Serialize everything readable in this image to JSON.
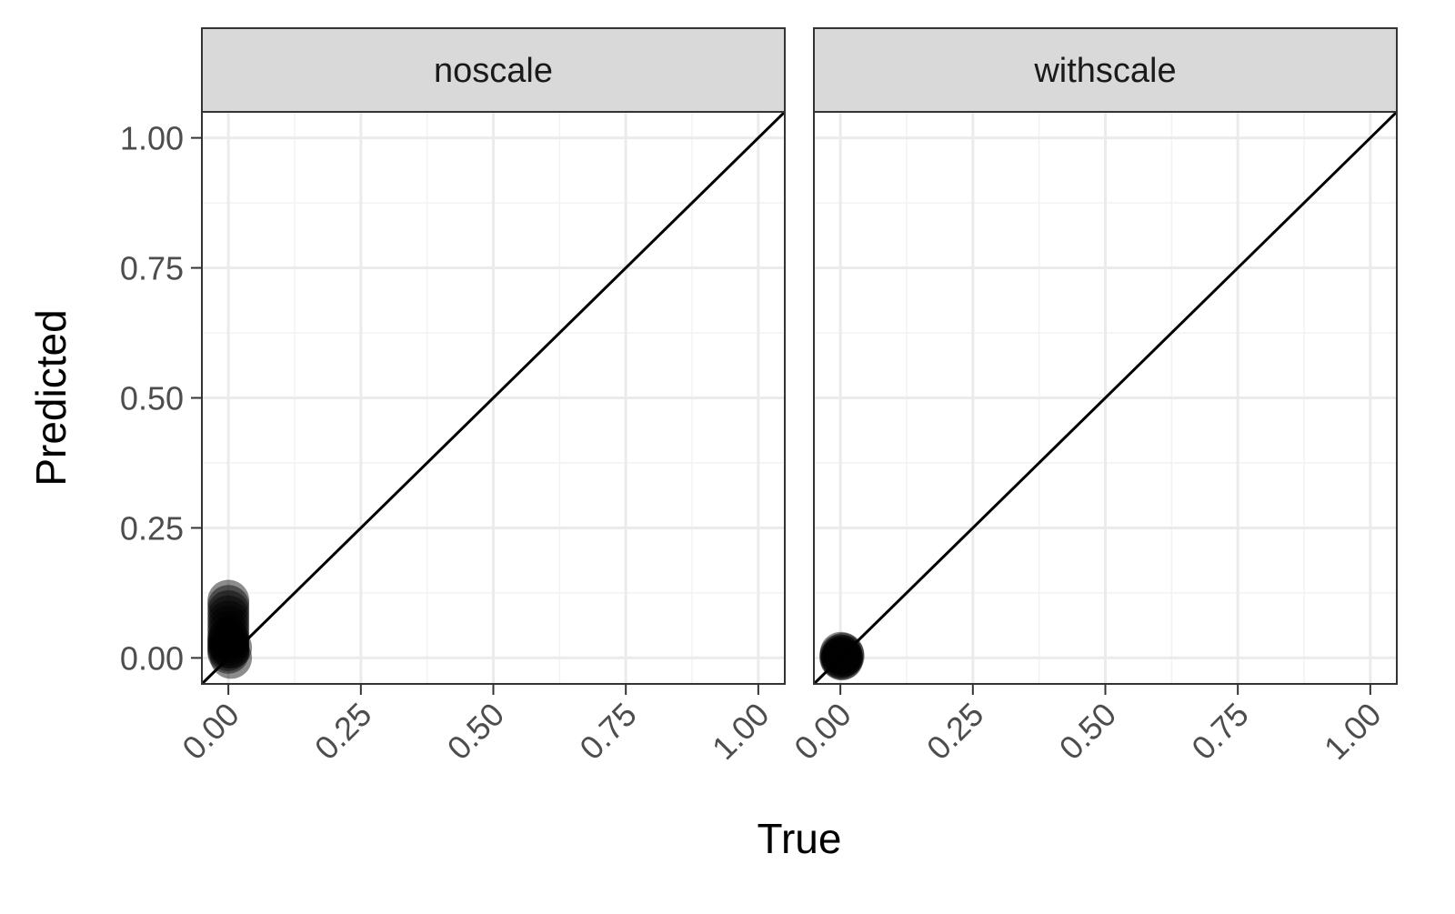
{
  "chart_data": {
    "type": "scatter",
    "xlabel": "True",
    "ylabel": "Predicted",
    "xlim": [
      -0.05,
      1.05
    ],
    "ylim": [
      -0.05,
      1.05
    ],
    "x_ticks": [
      "0.00",
      "0.25",
      "0.50",
      "0.75",
      "1.00"
    ],
    "y_ticks": [
      "0.00",
      "0.25",
      "0.50",
      "0.75",
      "1.00"
    ],
    "grid": true,
    "reference_line": "y = x",
    "point_color": "#000000",
    "panels": [
      {
        "label": "noscale",
        "points": [
          {
            "x": 0.0,
            "y": 0.11
          },
          {
            "x": 0.0,
            "y": 0.1
          },
          {
            "x": 0.0,
            "y": 0.09
          },
          {
            "x": 0.0,
            "y": 0.08
          },
          {
            "x": 0.0,
            "y": 0.07
          },
          {
            "x": 0.0,
            "y": 0.06
          },
          {
            "x": 0.0,
            "y": 0.05
          },
          {
            "x": 0.0,
            "y": 0.04
          },
          {
            "x": 0.0,
            "y": 0.035
          },
          {
            "x": 0.0,
            "y": 0.03
          },
          {
            "x": 0.0,
            "y": 0.025
          },
          {
            "x": 0.0,
            "y": 0.02
          },
          {
            "x": 0.0,
            "y": 0.015
          },
          {
            "x": 0.0,
            "y": 0.01
          },
          {
            "x": 0.005,
            "y": 0.02
          },
          {
            "x": 0.005,
            "y": 0.0
          }
        ]
      },
      {
        "label": "withscale",
        "points": [
          {
            "x": 0.0,
            "y": 0.0
          },
          {
            "x": 0.0,
            "y": 0.005
          },
          {
            "x": 0.003,
            "y": 0.002
          },
          {
            "x": 0.005,
            "y": 0.008
          },
          {
            "x": 0.002,
            "y": -0.003
          },
          {
            "x": 0.006,
            "y": 0.004
          },
          {
            "x": 0.001,
            "y": 0.01
          },
          {
            "x": 0.004,
            "y": -0.002
          }
        ]
      }
    ]
  }
}
